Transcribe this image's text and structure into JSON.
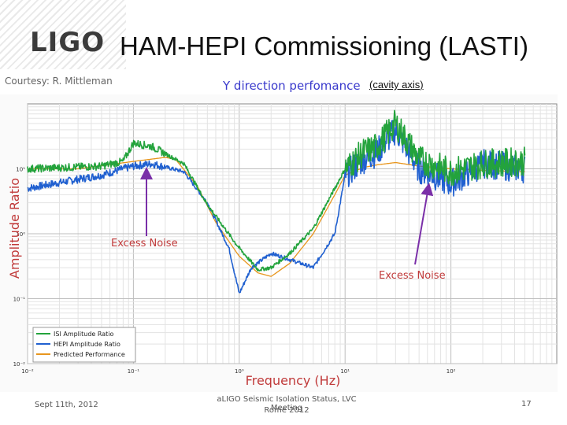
{
  "header": {
    "logo_text": "LIGO",
    "title": "HAM-HEPI  Commissioning (LASTI)",
    "courtesy": "Courtesy: R. Mittleman",
    "subtitle": "Y direction perfomance",
    "subtitle_note": "(cavity axis)"
  },
  "footer": {
    "date": "Sept 11th, 2012",
    "meeting_line1": "aLIGO Seismic Isolation Status, LVC Meeting",
    "meeting_line2": "Rome 2012",
    "page_number": "17"
  },
  "chart_data": {
    "type": "line",
    "xlabel": "Frequency (Hz)",
    "ylabel": "Amplitude Ratio",
    "x_scale": "log",
    "y_scale": "log",
    "xlim": [
      0.01,
      1000
    ],
    "ylim": [
      0.001,
      10
    ],
    "grid": true,
    "legend_placement": "bottom-left",
    "x_ticks": [
      "10⁻²",
      "10⁻¹",
      "10⁰",
      "10¹",
      "10²"
    ],
    "y_ticks": [
      "10¹",
      "10⁰",
      "10⁻¹",
      "10⁻²"
    ],
    "annotations": [
      "Excess Noise",
      "Excess Noise"
    ],
    "series": [
      {
        "name": "ISI Amplitude Ratio",
        "color": "#23a33c",
        "x": [
          0.01,
          0.05,
          0.08,
          0.1,
          0.15,
          0.3,
          0.5,
          1,
          1.5,
          2,
          3,
          5,
          8,
          10,
          15,
          20,
          30,
          50,
          100,
          200,
          500
        ],
        "y": [
          1.0,
          1.1,
          1.3,
          2.5,
          2.2,
          1.2,
          0.28,
          0.06,
          0.028,
          0.03,
          0.05,
          0.12,
          0.5,
          1.0,
          1.8,
          2.2,
          5.0,
          1.4,
          0.9,
          1.2,
          1.3
        ]
      },
      {
        "name": "HEPI Amplitude Ratio",
        "color": "#2060d0",
        "x": [
          0.01,
          0.05,
          0.08,
          0.1,
          0.15,
          0.3,
          0.5,
          0.8,
          1,
          1.3,
          2,
          3,
          5,
          8,
          10,
          15,
          20,
          30,
          50,
          100,
          200,
          500
        ],
        "y": [
          0.5,
          0.8,
          1.0,
          1.1,
          1.2,
          0.9,
          0.3,
          0.06,
          0.012,
          0.03,
          0.05,
          0.04,
          0.03,
          0.1,
          0.8,
          1.4,
          1.8,
          4.0,
          1.0,
          0.6,
          1.2,
          1.0
        ]
      },
      {
        "name": "Predicted Performance",
        "color": "#e8961e",
        "x": [
          0.01,
          0.03,
          0.1,
          0.2,
          0.25,
          0.4,
          0.6,
          1,
          1.5,
          2,
          3,
          5,
          8,
          10,
          15,
          20,
          30,
          50,
          100,
          200,
          500
        ],
        "y": [
          1.0,
          1.0,
          1.3,
          1.5,
          1.4,
          0.55,
          0.15,
          0.045,
          0.025,
          0.022,
          0.035,
          0.1,
          0.4,
          0.8,
          1.05,
          1.15,
          1.25,
          1.1,
          1.0,
          0.95,
          0.9
        ]
      }
    ]
  }
}
